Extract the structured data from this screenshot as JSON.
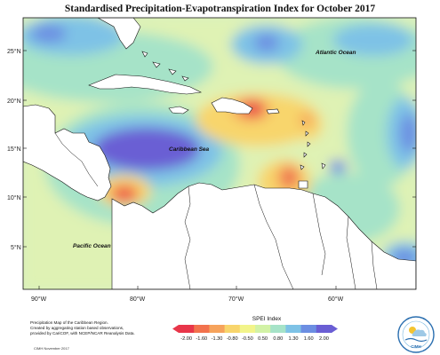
{
  "title": "Standardised Precipitation-Evapotranspiration Index for October 2017",
  "labels": {
    "atlantic": "Atlantic Ocean",
    "caribbean": "Caribbean Sea",
    "pacific": "Pacific Ocean"
  },
  "lat_ticks": [
    "25°N",
    "20°N",
    "15°N",
    "10°N",
    "5°N"
  ],
  "lon_ticks": [
    "90°W",
    "80°W",
    "70°W",
    "60°W"
  ],
  "legend": {
    "title": "SPEI Index",
    "values": [
      "-2.00",
      "-1.60",
      "-1.30",
      "-0.80",
      "-0.50",
      "0.50",
      "0.80",
      "1.30",
      "1.60",
      "2.00"
    ],
    "colors": [
      "#e8364a",
      "#f2724d",
      "#f6a35c",
      "#f8d56c",
      "#f2f48a",
      "#d2f2a6",
      "#a6e3c8",
      "#7ec2e6",
      "#6c8ee2",
      "#6a5ed4"
    ]
  },
  "footer": {
    "lines": [
      "Precipitation Map of the Caribbean Region.",
      "Created by aggregating station based observations,",
      "provided by CariCOF, with NCEP/NCAR Reanalysis Data."
    ],
    "credit": "CIMH November 2017",
    "logo_text": "CIMH"
  }
}
